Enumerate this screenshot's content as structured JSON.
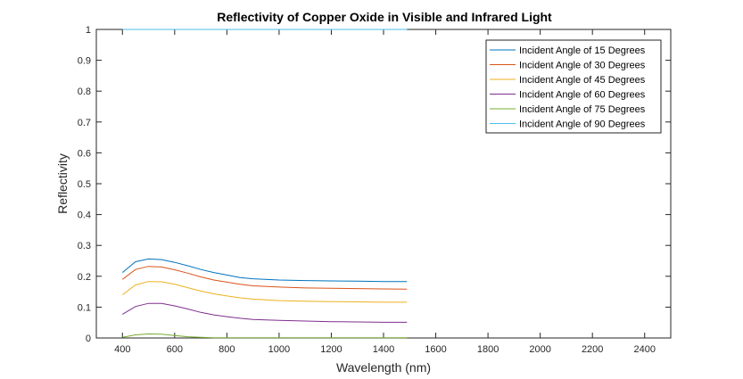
{
  "chart_data": {
    "type": "line",
    "title": "Reflectivity of Copper Oxide in Visible and Infrared Light",
    "xlabel": "Wavelength (nm)",
    "ylabel": "Reflectivity",
    "xlim": [
      300,
      2500
    ],
    "ylim": [
      0,
      1
    ],
    "xticks": [
      400,
      600,
      800,
      1000,
      1200,
      1400,
      1600,
      1800,
      2000,
      2200,
      2400
    ],
    "yticks": [
      0,
      0.1,
      0.2,
      0.3,
      0.4,
      0.5,
      0.6,
      0.7,
      0.8,
      0.9,
      1
    ],
    "ytick_labels": [
      "0",
      "0.1",
      "0.2",
      "0.3",
      "0.4",
      "0.5",
      "0.6",
      "0.7",
      "0.8",
      "0.9",
      "1"
    ],
    "grid": false,
    "legend_position": "top-right",
    "x": [
      400,
      450,
      500,
      550,
      600,
      650,
      700,
      750,
      800,
      850,
      900,
      1000,
      1100,
      1200,
      1300,
      1400,
      1490
    ],
    "series": [
      {
        "name": "Incident Angle of 15 Degrees",
        "color": "#0072BD",
        "values": [
          0.212,
          0.247,
          0.256,
          0.254,
          0.245,
          0.234,
          0.222,
          0.212,
          0.204,
          0.196,
          0.192,
          0.188,
          0.186,
          0.185,
          0.184,
          0.183,
          0.183
        ]
      },
      {
        "name": "Incident Angle of 30 Degrees",
        "color": "#D95319",
        "values": [
          0.19,
          0.222,
          0.232,
          0.23,
          0.221,
          0.21,
          0.198,
          0.188,
          0.181,
          0.174,
          0.169,
          0.165,
          0.162,
          0.161,
          0.16,
          0.159,
          0.158
        ]
      },
      {
        "name": "Incident Angle of 45 Degrees",
        "color": "#EDB120",
        "values": [
          0.14,
          0.172,
          0.183,
          0.182,
          0.174,
          0.163,
          0.152,
          0.143,
          0.136,
          0.13,
          0.126,
          0.121,
          0.119,
          0.118,
          0.117,
          0.116,
          0.116
        ]
      },
      {
        "name": "Incident Angle of 60 Degrees",
        "color": "#7E2F8E",
        "values": [
          0.077,
          0.102,
          0.112,
          0.112,
          0.104,
          0.094,
          0.083,
          0.075,
          0.069,
          0.064,
          0.06,
          0.057,
          0.055,
          0.053,
          0.052,
          0.051,
          0.051
        ]
      },
      {
        "name": "Incident Angle of 75 Degrees",
        "color": "#77AC30",
        "values": [
          0.002,
          0.01,
          0.013,
          0.012,
          0.008,
          0.004,
          0.002,
          0.001,
          0.001,
          0.001,
          0.001,
          0.001,
          0.001,
          0.001,
          0.001,
          0.001,
          0.001
        ]
      },
      {
        "name": "Incident Angle of 90 Degrees",
        "color": "#4DBEEE",
        "values": [
          1,
          1,
          1,
          1,
          1,
          1,
          1,
          1,
          1,
          1,
          1,
          1,
          1,
          1,
          1,
          1,
          1
        ]
      }
    ]
  }
}
